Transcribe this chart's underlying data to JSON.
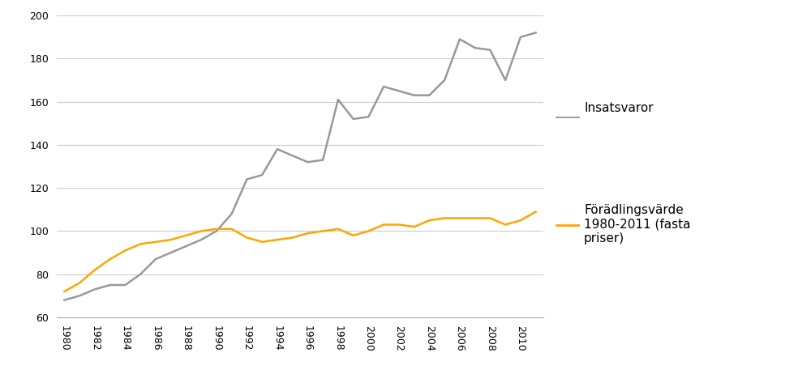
{
  "years": [
    1980,
    1981,
    1982,
    1983,
    1984,
    1985,
    1986,
    1987,
    1988,
    1989,
    1990,
    1991,
    1992,
    1993,
    1994,
    1995,
    1996,
    1997,
    1998,
    1999,
    2000,
    2001,
    2002,
    2003,
    2004,
    2005,
    2006,
    2007,
    2008,
    2009,
    2010,
    2011
  ],
  "insatsvaror": [
    68,
    70,
    73,
    75,
    75,
    80,
    87,
    90,
    93,
    96,
    100,
    108,
    124,
    126,
    138,
    135,
    132,
    133,
    161,
    152,
    153,
    167,
    165,
    163,
    163,
    170,
    189,
    185,
    184,
    170,
    190,
    192
  ],
  "foradlingsvarde": [
    72,
    76,
    82,
    87,
    91,
    94,
    95,
    96,
    98,
    100,
    101,
    101,
    97,
    95,
    96,
    97,
    99,
    100,
    101,
    98,
    100,
    103,
    103,
    102,
    105,
    106,
    106,
    106,
    106,
    103,
    105,
    109
  ],
  "insatsvaror_color": "#999999",
  "foradlingsvarde_color": "#FFA500",
  "ylim": [
    60,
    200
  ],
  "yticks": [
    60,
    80,
    100,
    120,
    140,
    160,
    180,
    200
  ],
  "legend_insatsvaror": "Insatsvaror",
  "legend_foradlingsvarde": "Förädlingsvärde\n1980-2011 (fasta\npriser)",
  "grid_color": "#cccccc",
  "background_color": "#ffffff",
  "line_width": 1.8,
  "figsize": [
    10.0,
    4.78
  ],
  "dpi": 100
}
